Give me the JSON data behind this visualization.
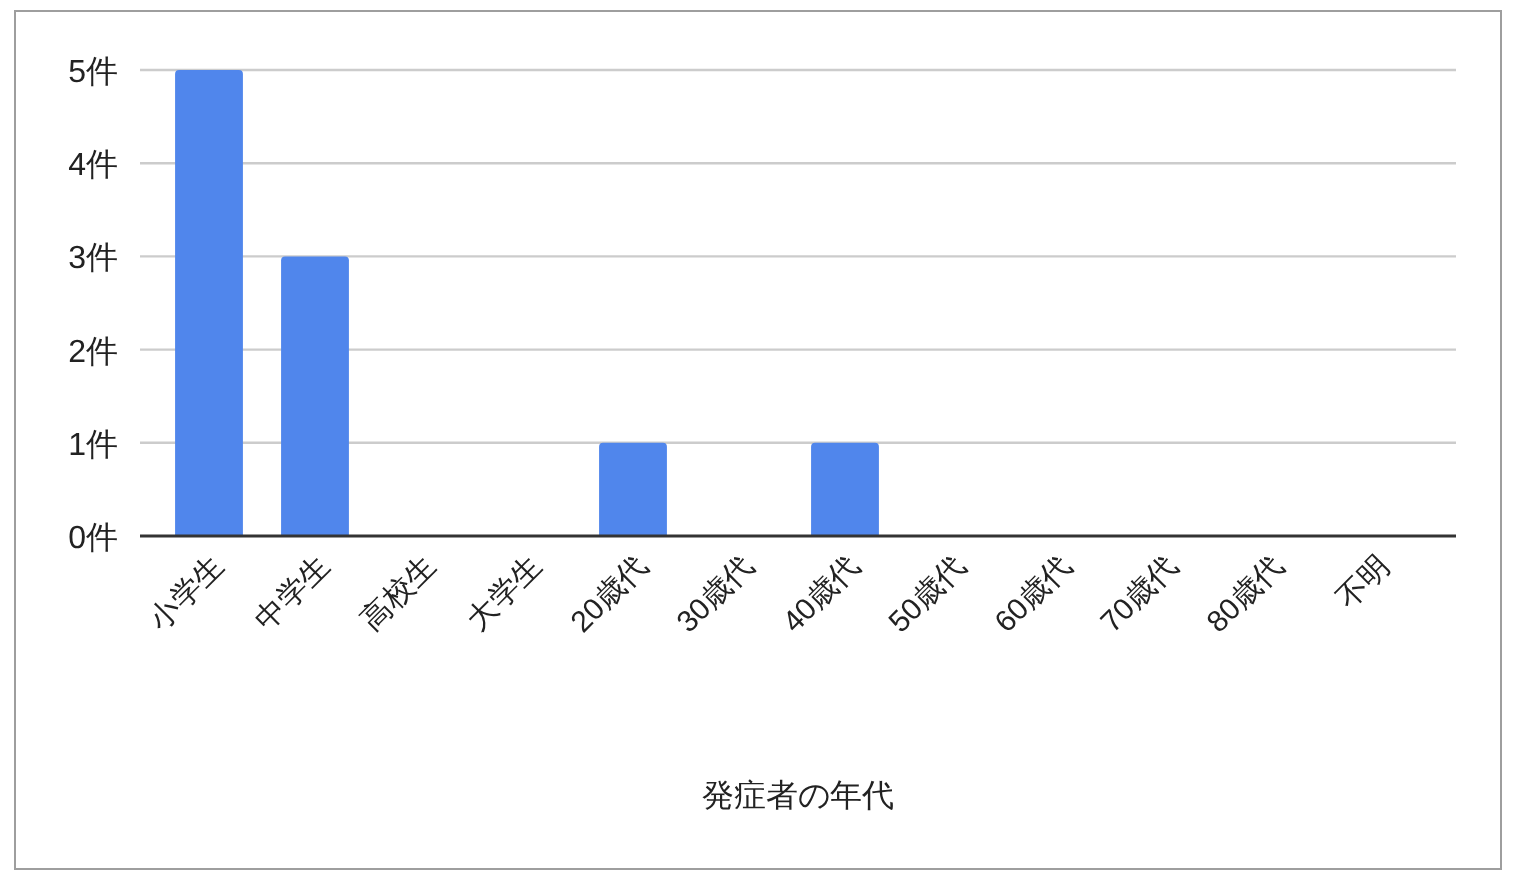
{
  "chart_data": {
    "type": "bar",
    "xlabel": "発症者の年代",
    "categories": [
      "小学生",
      "中学生",
      "高校生",
      "大学生",
      "20歳代",
      "30歳代",
      "40歳代",
      "50歳代",
      "60歳代",
      "70歳代",
      "80歳代",
      "不明"
    ],
    "values": [
      5,
      3,
      0,
      0,
      1,
      0,
      1,
      0,
      0,
      0,
      0,
      0
    ],
    "color": "#5086ec",
    "ylim": [
      0,
      5
    ],
    "yticks": [
      {
        "value": 0,
        "label": "0件"
      },
      {
        "value": 1,
        "label": "1件"
      },
      {
        "value": 2,
        "label": "2件"
      },
      {
        "value": 3,
        "label": "3件"
      },
      {
        "value": 4,
        "label": "4件"
      },
      {
        "value": 5,
        "label": "5件"
      }
    ],
    "grid": "y"
  }
}
